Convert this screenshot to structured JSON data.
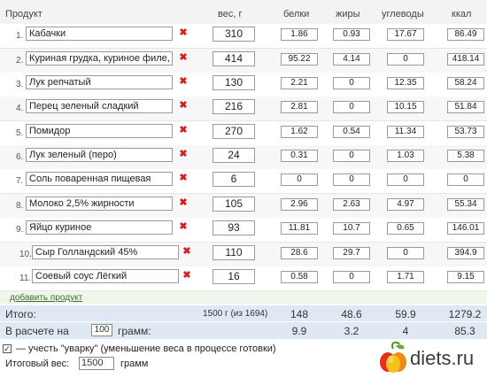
{
  "header": {
    "product": "Продукт",
    "weight": "вес, г",
    "protein": "белки",
    "fat": "жиры",
    "carbs": "углеводы",
    "kcal": "ккал"
  },
  "rows": [
    {
      "num": "1.",
      "name": "Кабачки",
      "weight": "310",
      "protein": "1.86",
      "fat": "0.93",
      "carbs": "17.67",
      "kcal": "86.49"
    },
    {
      "num": "2.",
      "name": "Куриная грудка, куриное филе, без",
      "weight": "414",
      "protein": "95.22",
      "fat": "4.14",
      "carbs": "0",
      "kcal": "418.14"
    },
    {
      "num": "3.",
      "name": "Лук репчатый",
      "weight": "130",
      "protein": "2.21",
      "fat": "0",
      "carbs": "12.35",
      "kcal": "58.24"
    },
    {
      "num": "4.",
      "name": "Перец зеленый сладкий",
      "weight": "216",
      "protein": "2.81",
      "fat": "0",
      "carbs": "10.15",
      "kcal": "51.84"
    },
    {
      "num": "5.",
      "name": "Помидор",
      "weight": "270",
      "protein": "1.62",
      "fat": "0.54",
      "carbs": "11.34",
      "kcal": "53.73"
    },
    {
      "num": "6.",
      "name": "Лук зеленый (перо)",
      "weight": "24",
      "protein": "0.31",
      "fat": "0",
      "carbs": "1.03",
      "kcal": "5.38"
    },
    {
      "num": "7.",
      "name": "Соль поваренная пищевая",
      "weight": "6",
      "protein": "0",
      "fat": "0",
      "carbs": "0",
      "kcal": "0"
    },
    {
      "num": "8.",
      "name": "Молоко 2,5% жирности",
      "weight": "105",
      "protein": "2.96",
      "fat": "2.63",
      "carbs": "4.97",
      "kcal": "55.34"
    },
    {
      "num": "9.",
      "name": "Яйцо куриное",
      "weight": "93",
      "protein": "11.81",
      "fat": "10.7",
      "carbs": "0.65",
      "kcal": "146.01"
    },
    {
      "num": "10.",
      "name": "Сыр Голландский 45%",
      "weight": "110",
      "protein": "28.6",
      "fat": "29.7",
      "carbs": "0",
      "kcal": "394.9"
    },
    {
      "num": "11.",
      "name": "Соевый соус Лёгкий",
      "weight": "16",
      "protein": "0.58",
      "fat": "0",
      "carbs": "1.71",
      "kcal": "9.15"
    }
  ],
  "add_product": "добавить продукт",
  "total": {
    "label": "Итого:",
    "weight": "1500 г (из 1694)",
    "protein": "148",
    "fat": "48.6",
    "carbs": "59.9",
    "kcal": "1279.2"
  },
  "per": {
    "label_before": "В расчете на",
    "amount": "100",
    "label_after": "грамм:",
    "protein": "9.9",
    "fat": "3.2",
    "carbs": "4",
    "kcal": "85.3"
  },
  "boil_off": {
    "checked": true,
    "label": "— учесть \"уварку\" (уменьшение веса в процессе готовки)"
  },
  "final_weight": {
    "label": "Итоговый вес:",
    "value": "1500",
    "unit": "грамм"
  },
  "logo": {
    "text": "diets.ru"
  },
  "colors": {
    "delete": "#cc2222",
    "total_bg": "#dfe9f3",
    "add_bg": "#eff7ec"
  }
}
